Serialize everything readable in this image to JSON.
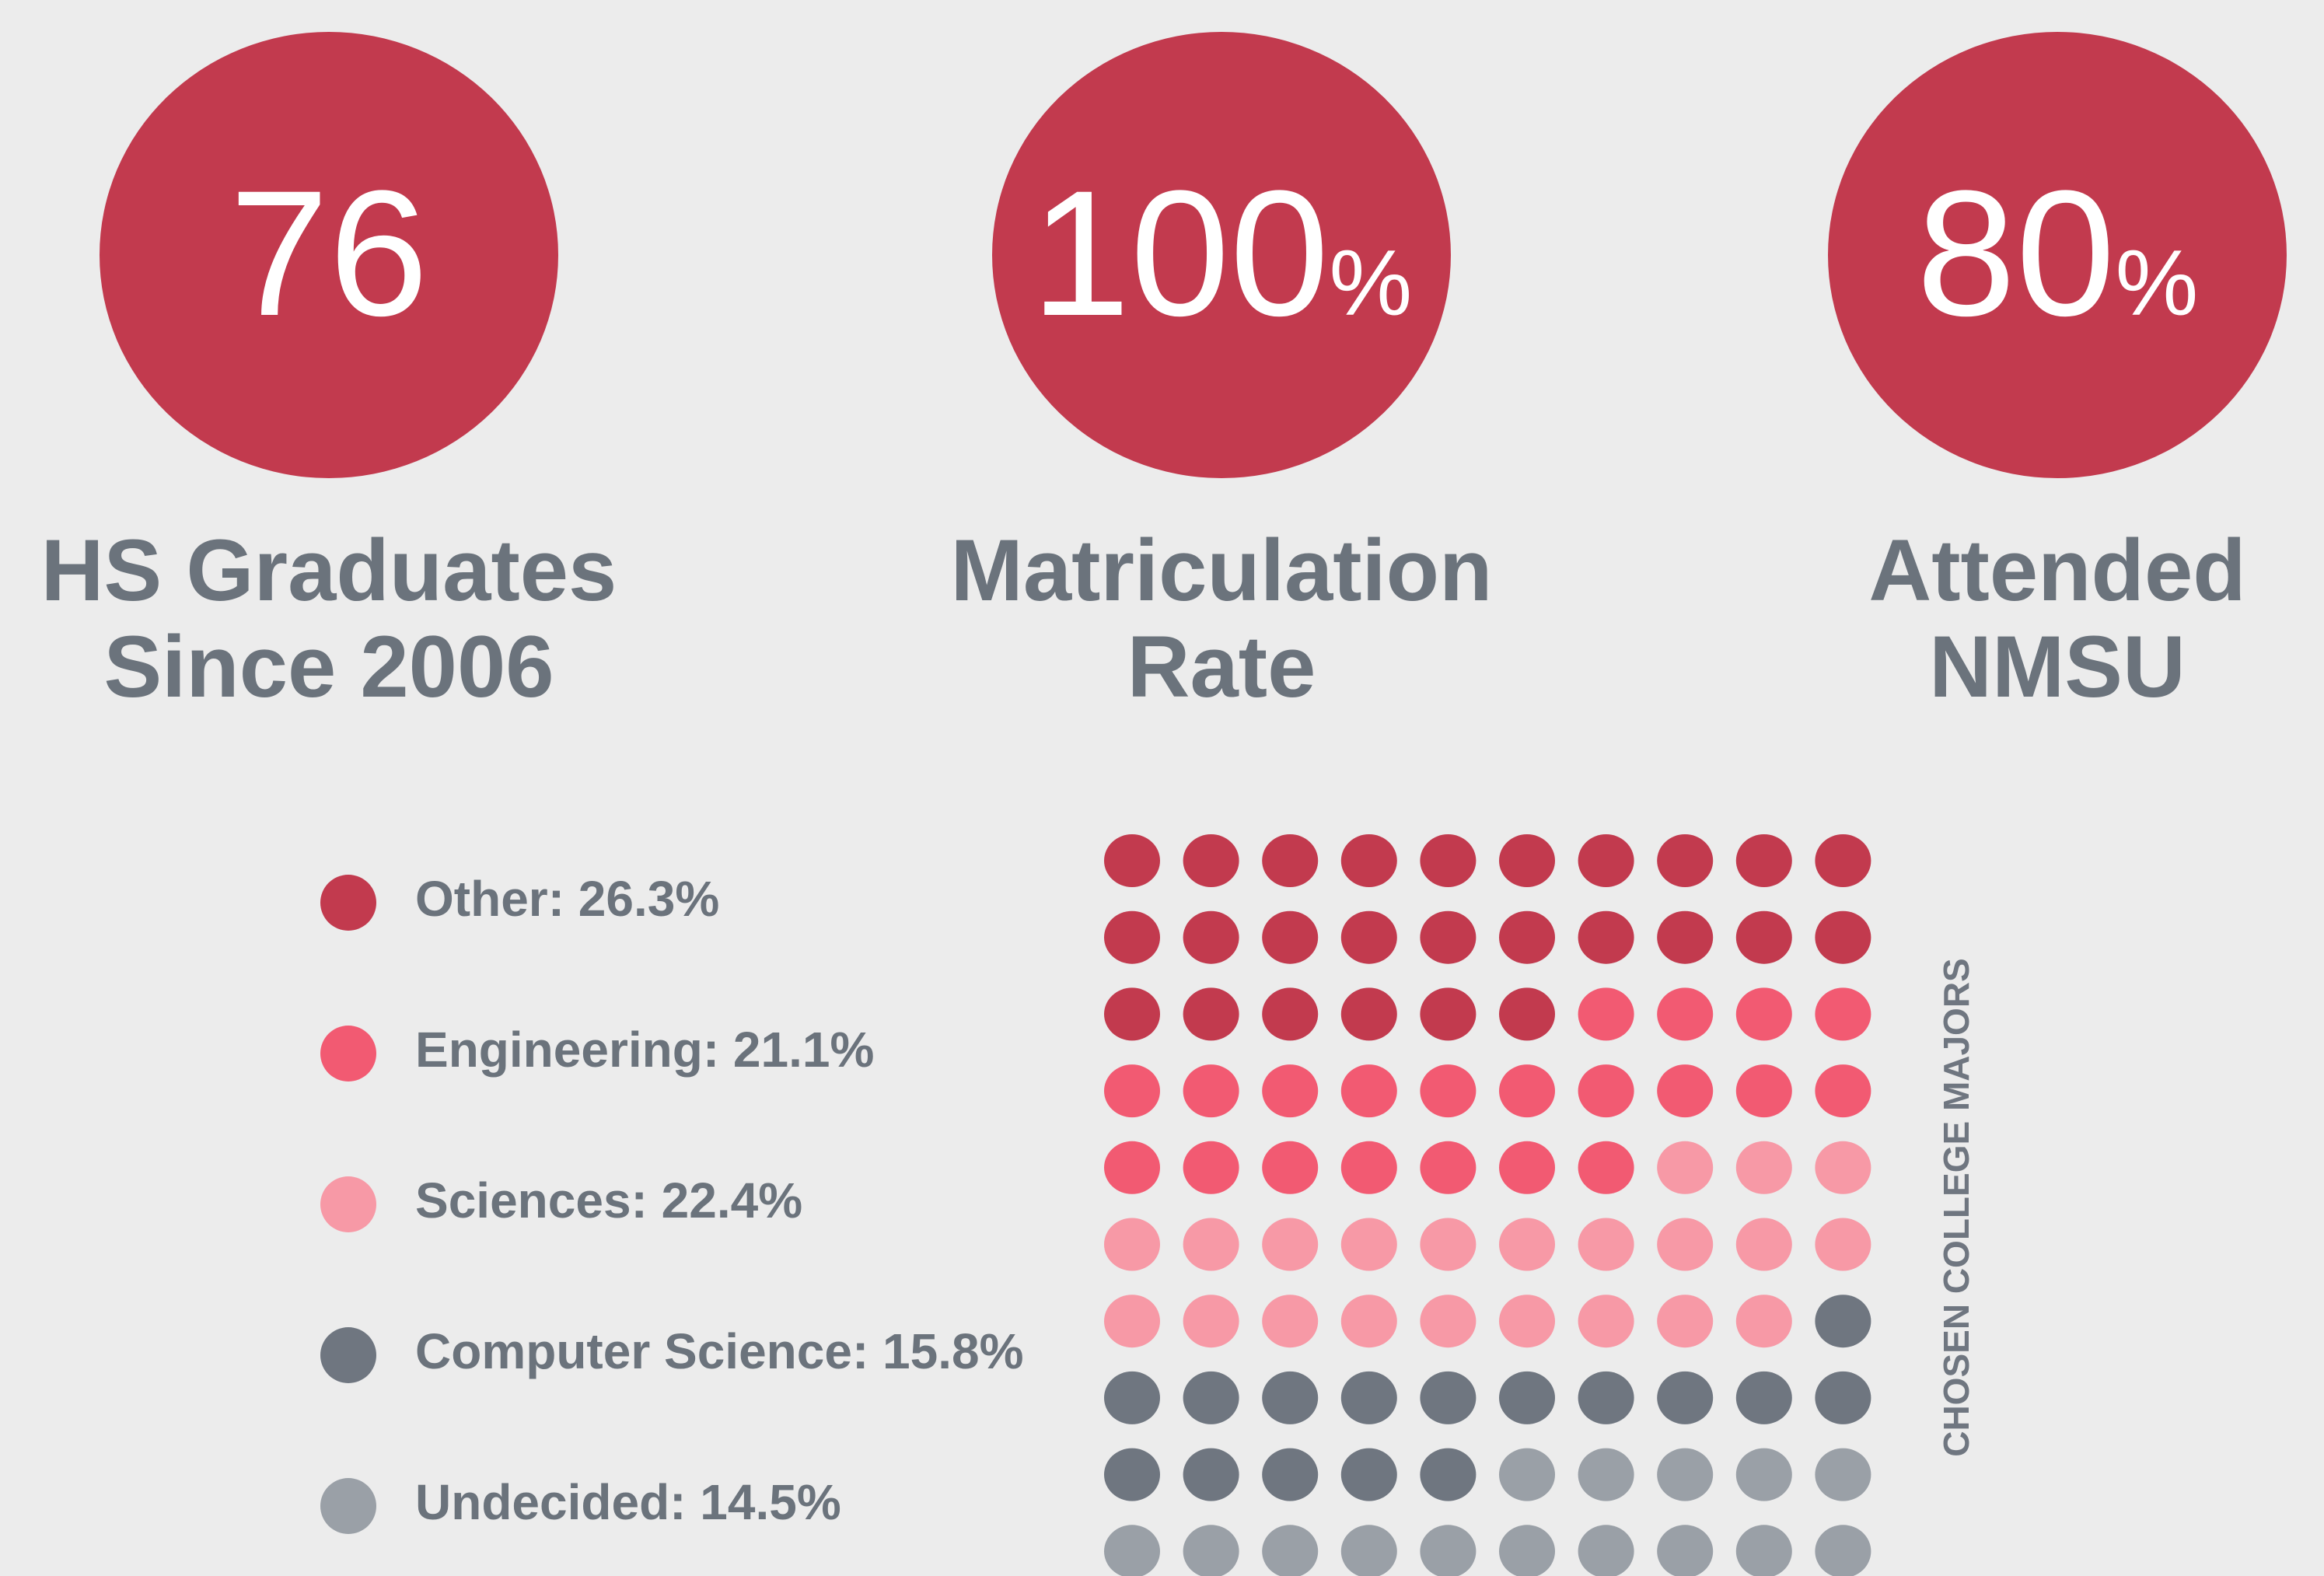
{
  "stats": [
    {
      "number": 76,
      "label": [
        "HS Graduates",
        "Since 2006"
      ]
    },
    {
      "number": 100,
      "unit": "%",
      "label": [
        "Matriculation",
        "Rate"
      ]
    },
    {
      "number": 80,
      "unit": "%",
      "label": [
        "Attended",
        "NMSU"
      ]
    }
  ],
  "chart_data": {
    "type": "waffle",
    "title": "CHOSEN COLLEGE MAJORS",
    "series": [
      {
        "name": "Other: 26.3%",
        "color": "#c23a4e",
        "values": [
          26.3
        ]
      },
      {
        "name": "Engineering: 21.1%",
        "color": "#f25a72",
        "values": [
          21.1
        ]
      },
      {
        "name": "Sciences: 22.4%",
        "color": "#f799a6",
        "values": [
          22.4
        ]
      },
      {
        "name": "Computer Science: 15.8%",
        "color": "#6f7680",
        "values": [
          15.8
        ]
      },
      {
        "name": "Undecided: 14.5%",
        "color": "#9aa0a7",
        "values": [
          14.5
        ]
      }
    ]
  }
}
